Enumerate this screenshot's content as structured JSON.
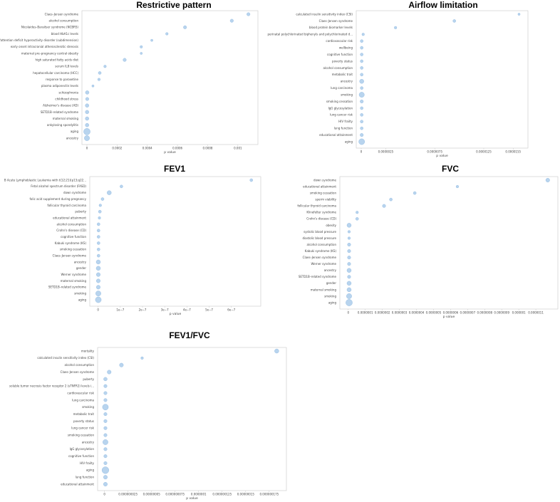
{
  "colors": {
    "dot_fill": "#b8d4ee",
    "dot_stroke": "#8cb6e0",
    "frame": "#c9c9c9"
  },
  "chart_data": [
    {
      "type": "scatter",
      "title": "Restrictive pattern",
      "xlabel": "p value",
      "xlim": [
        0,
        0.0011
      ],
      "xticks": [
        0,
        0.0002,
        0.0004,
        0.0006,
        0.0008,
        0.001
      ],
      "xticklabels": [
        "0",
        "0.0002",
        "0.0004",
        "0.0006",
        "0.0008",
        "0.001"
      ],
      "categories": [
        "Claes–Jensen syndrome",
        "alcohol consumption",
        "Nicolaides–Baraitser syndrome (NCBRS)",
        "blood HbA1c levels",
        "oppositional defiant disorder/conduct disorder/attention deficit hyperactivity disorder (subdimension)",
        "early onset intracranial atherosclerotic stenosis",
        "maternal pre–pregnancy central obesity",
        "high saturated fatty acids diet",
        "serum IL8 levels",
        "hepatocellular carcinoma (HCC)",
        "response to paroxetine",
        "plasma adiponectin levels",
        "schizophrenia",
        "childhood stress",
        "Alzheimer's disease (AD)",
        "SETD1B–related syndrome",
        "maternal smoking",
        "ankylosing spondylitis",
        "aging",
        "ancestry"
      ],
      "values": [
        0.00107,
        0.00096,
        0.00065,
        0.00053,
        0.00043,
        0.00036,
        0.00036,
        0.00025,
        0.00012,
        8.5e-05,
        8e-05,
        4e-05,
        2e-06,
        2e-06,
        1e-06,
        1e-06,
        1e-06,
        1e-06,
        1e-07,
        1e-07
      ],
      "sizes": [
        1,
        1,
        1,
        0.8,
        0.7,
        0.8,
        0.7,
        1,
        0.8,
        0.9,
        0.8,
        0.7,
        1.1,
        1,
        1.1,
        1.1,
        1.1,
        1.1,
        2,
        1.6
      ]
    },
    {
      "type": "scatter",
      "title": "Airflow limitation",
      "xlabel": "p value",
      "xlim": [
        0,
        1.65e-05
      ],
      "xticks": [
        0,
        2.5e-06,
        7.5e-06,
        1.25e-05,
        1.55e-05
      ],
      "xticklabels": [
        "0",
        "0.0000025",
        "0.0000075",
        "0.0000125",
        "0.0000155"
      ],
      "categories": [
        "calculated insulin sensitivity index (CSI)",
        "Claes–Jensen syndrome",
        "blood protein biomarker levels",
        "perinatal polychlorinated biphenyls and polychlorinated d...",
        "cardiovascular risk",
        "wellbeing",
        "cognitive function",
        "poverty status",
        "alcohol consumption",
        "metabolic trait",
        "ancestry",
        "lung carcinoma",
        "smoking",
        "smoking cessation",
        "IgG glycosylation",
        "lung cancer risk",
        "HIV frailty",
        "lung function",
        "educational attainment",
        "aging"
      ],
      "values": [
        1.61e-05,
        9.5e-06,
        3.5e-06,
        2e-07,
        5e-08,
        5e-08,
        5e-08,
        5e-08,
        5e-08,
        5e-08,
        5e-08,
        5e-08,
        5e-08,
        5e-08,
        5e-08,
        5e-08,
        5e-08,
        5e-08,
        5e-08,
        5e-08
      ],
      "sizes": [
        0.7,
        0.9,
        0.8,
        0.8,
        0.9,
        0.9,
        0.9,
        0.9,
        0.9,
        0.9,
        1.3,
        0.9,
        1.6,
        1,
        0.9,
        0.9,
        0.9,
        0.9,
        1,
        1.8
      ]
    },
    {
      "type": "scatter",
      "title": "FEV1",
      "xlabel": "p value",
      "xlim": [
        -1.5e-08,
        7.1e-07
      ],
      "xticks": [
        0,
        1e-07,
        2e-07,
        3e-07,
        4e-07,
        5e-07,
        6e-07
      ],
      "xticklabels": [
        "0",
        "1e−7",
        "2e−7",
        "3e−7",
        "4e−7",
        "5e−7",
        "6e−7"
      ],
      "categories": [
        "B Acute Lymphoblastic Leukemia with t(12;21)(p13;q22...",
        "Fetal alcohol spectrum disorder (FASD)",
        "down syndrome",
        "folic acid supplement during pregnancy",
        "follicular thyroid carcinoma",
        "puberty",
        "educational attainment",
        "alcohol consumption",
        "Crohn's disease (CD)",
        "cognitive function",
        "Kabuki syndrome (KS)",
        "smoking cessation",
        "Claes–Jensen syndrome",
        "ancestry",
        "gender",
        "Werner syndrome",
        "maternal smoking",
        "SETD1B–related syndrome",
        "smoking",
        "aging"
      ],
      "values": [
        6.9e-07,
        1.05e-07,
        5e-08,
        2e-08,
        1e-08,
        8e-09,
        6e-09,
        2e-09,
        2e-09,
        2e-09,
        2e-09,
        2e-09,
        2e-09,
        1e-09,
        1e-09,
        1e-09,
        1e-09,
        1e-09,
        1e-09,
        1e-09
      ],
      "sizes": [
        0.9,
        0.9,
        1.3,
        0.9,
        0.8,
        0.9,
        0.8,
        0.9,
        0.9,
        0.9,
        0.9,
        0.9,
        0.9,
        1.3,
        1.3,
        1.2,
        1.2,
        1.2,
        1.6,
        1.8
      ]
    },
    {
      "type": "scatter",
      "title": "FVC",
      "xlabel": "p value",
      "xlim": [
        -2e-08,
        1.2e-06
      ],
      "xticks": [
        0,
        1e-07,
        2e-07,
        3e-07,
        4e-07,
        5e-07,
        6e-07,
        7e-07,
        8e-07,
        9e-07,
        1e-06,
        1.1e-06
      ],
      "xticklabels": [
        "0",
        "0.0000001",
        "0.0000002",
        "0.0000003",
        "0.0000004",
        "0.0000005",
        "0.0000006",
        "0.0000007",
        "0.0000008",
        "0.0000009",
        "0.000001",
        "0.0000011"
      ],
      "categories": [
        "down syndrome",
        "educational attainment",
        "smoking cessation",
        "sperm viability",
        "follicular thyroid carcinoma",
        "Klinefelter syndrome",
        "Crohn's disease (CD)",
        "obesity",
        "systolic blood pressure",
        "diastolic blood pressure",
        "alcohol consumption",
        "Kabuki syndrome (KS)",
        "Claes–Jensen syndrome",
        "Werner syndrome",
        "ancestry",
        "SETD1B–related syndrome",
        "gender",
        "maternal smoking",
        "smoking",
        "aging"
      ],
      "values": [
        1.17e-06,
        6.4e-07,
        3.9e-07,
        2.5e-07,
        2.1e-07,
        5.2e-08,
        5.2e-08,
        5e-09,
        5e-09,
        5e-09,
        5e-09,
        5e-09,
        5e-09,
        5e-09,
        5e-09,
        5e-09,
        5e-09,
        5e-09,
        5e-09,
        5e-09
      ],
      "sizes": [
        1.2,
        0.8,
        0.9,
        0.9,
        1,
        0.8,
        0.9,
        1.3,
        0.8,
        0.8,
        1,
        1,
        1,
        1,
        1.3,
        1,
        1.3,
        1.3,
        1.6,
        2
      ]
    },
    {
      "type": "scatter",
      "title": "FEV1/FVC",
      "xlabel": "p value",
      "xlim": [
        -2e-09,
        1.88e-07
      ],
      "xticks": [
        0,
        2.5e-08,
        5e-08,
        7.5e-08,
        1e-07,
        1.25e-07,
        1.5e-07,
        1.75e-07
      ],
      "xticklabels": [
        "0",
        "0.000000025",
        "0.00000005",
        "0.000000075",
        "0.0000001",
        "0.000000125",
        "0.00000015",
        "0.000000175"
      ],
      "categories": [
        "mortality",
        "calculated insulin sensitivity index (CSI)",
        "alcohol consumption",
        "Claes–Jensen syndrome",
        "puberty",
        "soluble tumor necrosis factor receptor 2 (sTNFR2) levels i...",
        "cardiovascular risk",
        "lung carcinoma",
        "smoking",
        "metabolic trait",
        "poverty status",
        "lung cancer risk",
        "smoking cessation",
        "ancestry",
        "IgG glycosylation",
        "cognitive function",
        "HIV frailty",
        "aging",
        "lung function",
        "educational attainment"
      ],
      "values": [
        1.83e-07,
        4e-08,
        1.8e-08,
        5e-09,
        1e-09,
        1e-09,
        1e-09,
        1e-09,
        1e-09,
        1e-09,
        1e-09,
        1e-09,
        1e-09,
        1e-09,
        1e-09,
        1e-09,
        1e-09,
        1e-09,
        1e-09,
        1e-09
      ],
      "sizes": [
        1.3,
        0.8,
        1.2,
        1.2,
        1.1,
        1,
        1,
        1,
        1.8,
        1,
        1,
        1,
        1,
        1.6,
        1,
        1,
        1,
        2.1,
        1.2,
        1.2
      ]
    }
  ]
}
